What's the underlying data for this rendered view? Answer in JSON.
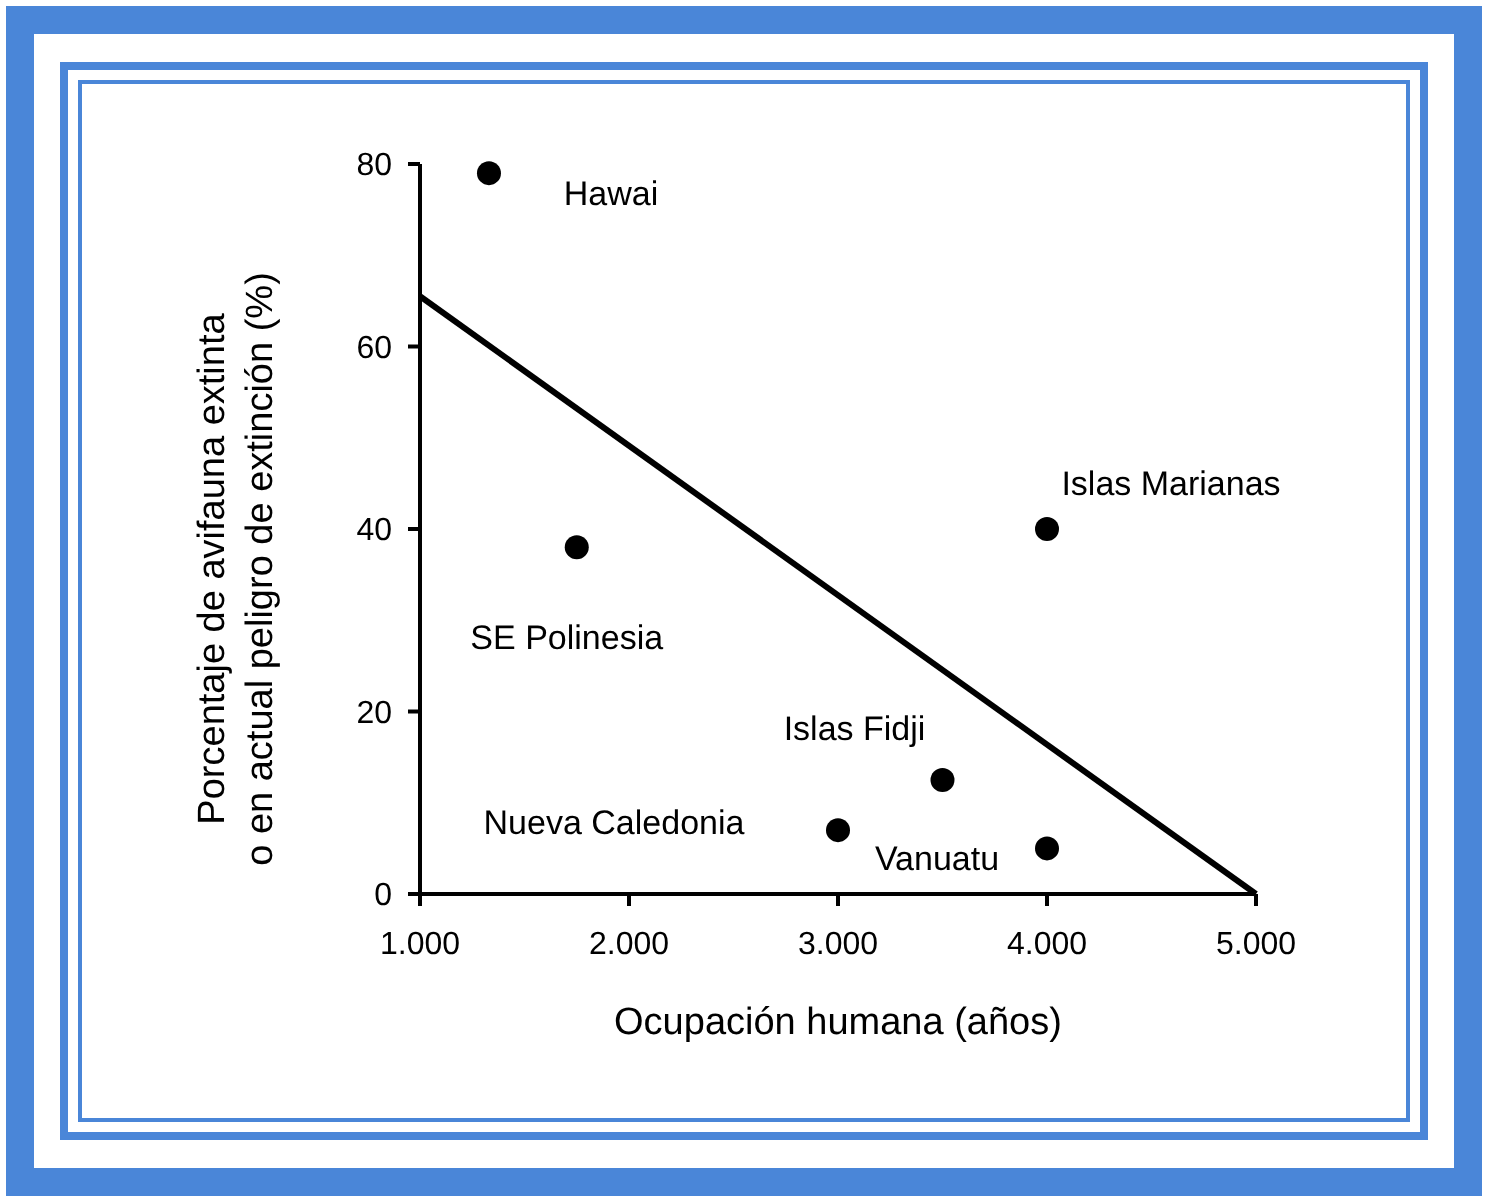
{
  "chart_data": {
    "type": "scatter",
    "xlabel": "Ocupación humana (años)",
    "ylabel": "Porcentaje de avifauna extinta\no en actual peligro de extinción (%)",
    "xlim": [
      1000,
      5000
    ],
    "ylim": [
      0,
      80
    ],
    "xticks": [
      {
        "value": 1000,
        "label": "1.000"
      },
      {
        "value": 2000,
        "label": "2.000"
      },
      {
        "value": 3000,
        "label": "3.000"
      },
      {
        "value": 4000,
        "label": "4.000"
      },
      {
        "value": 5000,
        "label": "5.000"
      }
    ],
    "yticks": [
      0,
      20,
      40,
      60,
      80
    ],
    "grid": false,
    "marker": "circle",
    "series": [
      {
        "color": "#000000",
        "x": [
          1330,
          1750,
          4000,
          3500,
          3000,
          4000
        ],
        "values": [
          79,
          38,
          40,
          12.5,
          7,
          5
        ]
      },
      {
        "type": "line",
        "color": "#000000",
        "x": [
          1000,
          5000
        ],
        "values": [
          65.5,
          0
        ],
        "marker": "none",
        "line_style": "solid"
      }
    ],
    "annotations": [
      {
        "text": "Hawai",
        "x": 1330,
        "y": 79
      },
      {
        "text": "SE Polinesia",
        "x": 1750,
        "y": 38
      },
      {
        "text": "Islas Marianas",
        "x": 4000,
        "y": 40
      },
      {
        "text": "Islas Fidji",
        "x": 3500,
        "y": 12.5
      },
      {
        "text": "Nueva Caledonia",
        "x": 3000,
        "y": 7
      },
      {
        "text": "Vanuatu",
        "x": 4000,
        "y": 5
      }
    ]
  }
}
